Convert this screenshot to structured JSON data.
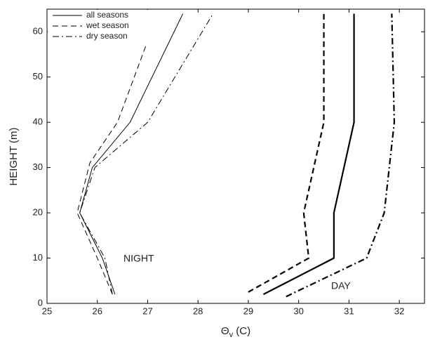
{
  "chart_data": {
    "type": "line",
    "x_label": {
      "symbol": "Θ",
      "subscript": "v",
      "unit": "(C)"
    },
    "y_label": "HEIGHT (m)",
    "annotations": [
      "NIGHT",
      "DAY"
    ],
    "series": [
      {
        "name": "all seasons",
        "color": "#000000",
        "dash": "solid",
        "x": [
          26.35,
          26.1,
          25.65,
          25.9,
          26.65,
          27.7,
          null,
          29.3,
          30.7,
          30.7,
          31.1,
          31.1
        ],
        "y": [
          2,
          10,
          20,
          30,
          40,
          64,
          null,
          2,
          10,
          20,
          40,
          64
        ]
      },
      {
        "name": "wet season",
        "color": "#000000",
        "dash": "dashed",
        "x": [
          26.3,
          26.0,
          25.6,
          25.85,
          26.4,
          27.2,
          null,
          29.0,
          30.2,
          30.1,
          30.5,
          30.5
        ],
        "y": [
          2,
          10,
          20,
          31,
          40,
          64,
          null,
          2.5,
          10,
          20,
          40,
          64
        ]
      },
      {
        "name": "dry season",
        "color": "#000000",
        "dash": "dashdot",
        "x": [
          26.3,
          26.15,
          25.65,
          25.95,
          27.0,
          28.3,
          null,
          29.75,
          31.35,
          31.7,
          31.9,
          31.85
        ],
        "y": [
          2,
          10,
          20,
          30,
          40,
          64,
          null,
          1.5,
          10,
          20,
          40,
          64
        ]
      }
    ],
    "xlim": [
      25,
      32.5
    ],
    "xticks": [
      25,
      26,
      27,
      28,
      29,
      30,
      31,
      32
    ],
    "ylim": [
      0,
      65
    ],
    "yticks": [
      0,
      10,
      20,
      30,
      40,
      50,
      60
    ],
    "legend": "upper left",
    "grid": false
  }
}
